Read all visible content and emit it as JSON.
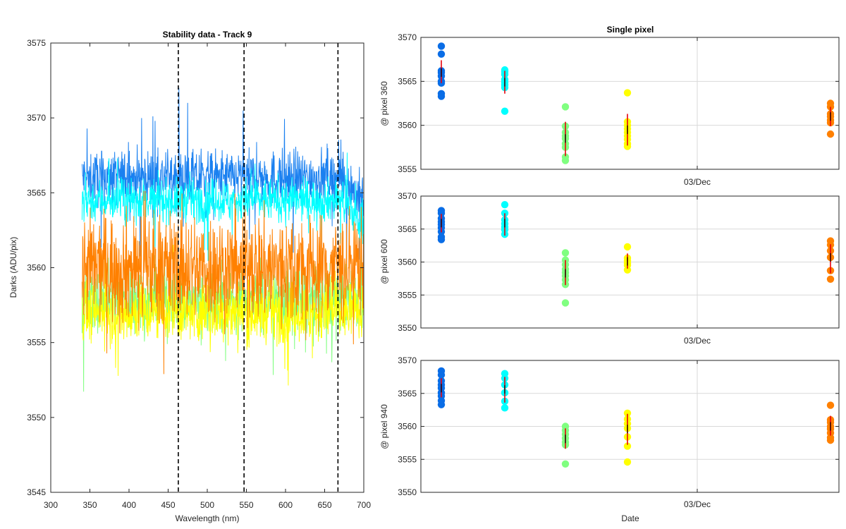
{
  "chart_data": [
    {
      "type": "line",
      "title": "Stability data - Track 9",
      "xlabel": "Wavelength (nm)",
      "ylabel": "Darks (ADU/pix)",
      "xlim": [
        300,
        700
      ],
      "ylim": [
        3545,
        3575
      ],
      "xticks": [
        300,
        350,
        400,
        450,
        500,
        550,
        600,
        650,
        700
      ],
      "yticks": [
        3545,
        3550,
        3555,
        3560,
        3565,
        3570,
        3575
      ],
      "grid": false,
      "wavelength_range": [
        340,
        700
      ],
      "vertical_markers": [
        463,
        547,
        667
      ],
      "series": [
        {
          "color": "#1a80f0",
          "center": 3566.0,
          "noise": 1.3,
          "spikes": 4.5
        },
        {
          "color": "#00ffff",
          "center": 3564.5,
          "noise": 1.0,
          "spikes": 3.5
        },
        {
          "color": "#80ff80",
          "center": 3557.8,
          "noise": 1.6,
          "spikes": 4.5
        },
        {
          "color": "#ffff00",
          "center": 3557.0,
          "noise": 1.4,
          "spikes": 4.0
        },
        {
          "color": "#ff8000",
          "center": 3560.0,
          "noise": 2.6,
          "spikes": 4.5
        }
      ]
    },
    {
      "type": "scatter",
      "title": "Single pixel",
      "ylabel": "@ pixel 360",
      "ylim": [
        3555,
        3570
      ],
      "yticks": [
        3555,
        3560,
        3565,
        3570
      ],
      "xtick_label": "03/Dec",
      "grid": true,
      "series": [
        {
          "color": "#0a6de6",
          "x": 1,
          "values": [
            3569.0,
            3568.1,
            3566.2,
            3566.0,
            3565.6,
            3565.0,
            3564.8,
            3563.6,
            3563.3
          ],
          "mean": 3566.0,
          "std_low": 3564.8,
          "std_high": 3567.4
        },
        {
          "color": "#00ffff",
          "x": 2,
          "values": [
            3566.3,
            3566.1,
            3565.8,
            3565.2,
            3564.9,
            3564.6,
            3564.3,
            3561.6
          ],
          "mean": 3564.9,
          "std_low": 3563.6,
          "std_high": 3566.2
        },
        {
          "color": "#80ff80",
          "x": 3,
          "values": [
            3562.1,
            3559.9,
            3559.2,
            3558.8,
            3558.5,
            3557.9,
            3557.5,
            3556.4,
            3556.0
          ],
          "mean": 3558.5,
          "std_low": 3556.5,
          "std_high": 3560.4
        },
        {
          "color": "#ffff00",
          "x": 4,
          "values": [
            3563.7,
            3560.4,
            3560.0,
            3559.6,
            3559.2,
            3558.8,
            3558.4,
            3557.9,
            3557.6
          ],
          "mean": 3559.5,
          "std_low": 3557.7,
          "std_high": 3561.3
        },
        {
          "color": "#ff8000",
          "x": 6,
          "values": [
            3562.5,
            3562.1,
            3561.3,
            3561.0,
            3560.6,
            3560.3,
            3559.0
          ],
          "mean": 3561.0,
          "std_low": 3559.9,
          "std_high": 3562.1
        }
      ]
    },
    {
      "type": "scatter",
      "ylabel": "@ pixel 600",
      "ylim": [
        3550,
        3570
      ],
      "yticks": [
        3550,
        3555,
        3560,
        3565,
        3570
      ],
      "xtick_label": "03/Dec",
      "grid": true,
      "series": [
        {
          "color": "#0a6de6",
          "x": 1,
          "values": [
            3567.8,
            3567.4,
            3566.6,
            3566.1,
            3565.7,
            3565.2,
            3564.6,
            3563.8,
            3563.4
          ],
          "mean": 3565.9,
          "std_low": 3564.5,
          "std_high": 3567.3
        },
        {
          "color": "#00ffff",
          "x": 2,
          "values": [
            3568.7,
            3567.4,
            3566.4,
            3565.8,
            3565.3,
            3564.9,
            3564.2
          ],
          "mean": 3565.9,
          "std_low": 3564.0,
          "std_high": 3567.4
        },
        {
          "color": "#80ff80",
          "x": 3,
          "values": [
            3561.4,
            3560.3,
            3559.6,
            3558.9,
            3558.4,
            3557.9,
            3557.3,
            3556.6,
            3553.8
          ],
          "mean": 3558.3,
          "std_low": 3556.5,
          "std_high": 3560.3
        },
        {
          "color": "#ffff00",
          "x": 4,
          "values": [
            3562.3,
            3560.6,
            3560.2,
            3559.8,
            3559.5,
            3558.8
          ],
          "mean": 3560.1,
          "std_low": 3559.0,
          "std_high": 3561.3
        },
        {
          "color": "#ff8000",
          "x": 6,
          "values": [
            3563.2,
            3562.6,
            3561.7,
            3560.7,
            3558.7,
            3557.4
          ],
          "mean": 3560.7,
          "std_low": 3558.3,
          "std_high": 3562.7
        }
      ]
    },
    {
      "type": "scatter",
      "xlabel": "Date",
      "ylabel": "@ pixel 940",
      "ylim": [
        3550,
        3570
      ],
      "yticks": [
        3550,
        3555,
        3560,
        3565,
        3570
      ],
      "xtick_label": "03/Dec",
      "grid": true,
      "series": [
        {
          "color": "#0a6de6",
          "x": 1,
          "values": [
            3568.4,
            3567.8,
            3566.9,
            3566.3,
            3565.8,
            3565.1,
            3564.6,
            3563.9,
            3563.3
          ],
          "mean": 3565.8,
          "std_low": 3564.4,
          "std_high": 3567.3
        },
        {
          "color": "#00ffff",
          "x": 2,
          "values": [
            3568.0,
            3567.3,
            3566.3,
            3565.1,
            3563.8,
            3562.8
          ],
          "mean": 3565.6,
          "std_low": 3563.6,
          "std_high": 3567.5
        },
        {
          "color": "#80ff80",
          "x": 3,
          "values": [
            3560.0,
            3559.4,
            3558.8,
            3558.2,
            3557.6,
            3557.2,
            3554.3
          ],
          "mean": 3558.1,
          "std_low": 3556.6,
          "std_high": 3559.7
        },
        {
          "color": "#ffff00",
          "x": 4,
          "values": [
            3562.0,
            3561.1,
            3560.4,
            3559.7,
            3558.4,
            3557.0,
            3554.6
          ],
          "mean": 3559.6,
          "std_low": 3557.2,
          "std_high": 3561.9
        },
        {
          "color": "#ff8000",
          "x": 6,
          "values": [
            3563.2,
            3561.0,
            3560.6,
            3560.0,
            3559.6,
            3559.0,
            3558.3,
            3557.9
          ],
          "mean": 3560.0,
          "std_low": 3558.6,
          "std_high": 3561.6
        }
      ]
    }
  ],
  "colors": {
    "axis": "#262626",
    "grid": "#d9d9d9",
    "errorbar": "#e8000b",
    "marker_line": "#000000"
  }
}
